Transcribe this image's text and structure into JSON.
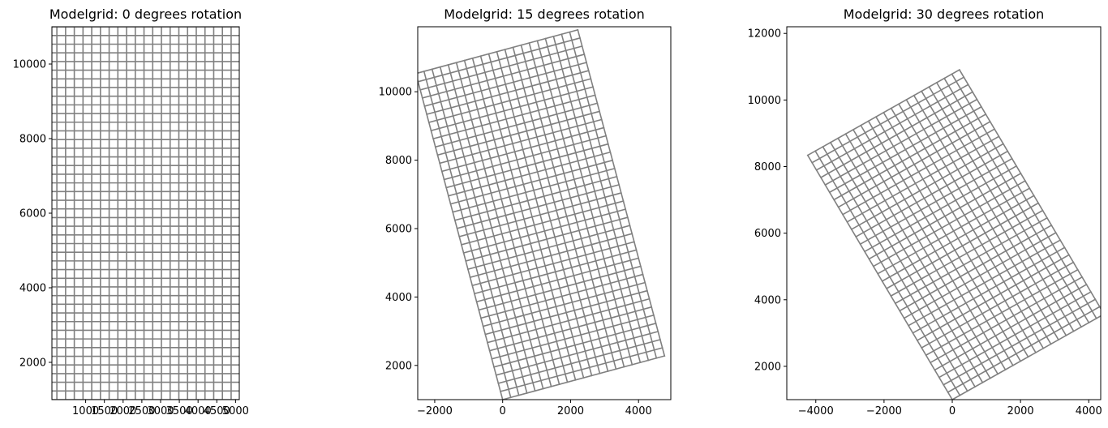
{
  "chart_data": [
    {
      "type": "grid",
      "title": "Modelgrid: 0 degrees rotation",
      "rotation_deg": 0,
      "origin": [
        0,
        1000
      ],
      "ncol": 22,
      "nrow": 43,
      "cell_size": 232.5,
      "xlim": [
        100,
        5100
      ],
      "ylim": [
        1000,
        11000
      ],
      "xticks": [
        1000,
        1500,
        2000,
        2500,
        3000,
        3500,
        4000,
        4500,
        5000
      ],
      "xtick_labels": [
        "1000",
        "1500",
        "2000",
        "2500",
        "3000",
        "3500",
        "4000",
        "4500",
        "5000"
      ],
      "yticks": [
        2000,
        4000,
        6000,
        8000,
        10000
      ],
      "ytick_labels": [
        "2000",
        "4000",
        "6000",
        "8000",
        "10000"
      ],
      "line_color": "#808080"
    },
    {
      "type": "grid",
      "title": "Modelgrid: 15 degrees rotation",
      "rotation_deg": 15,
      "origin": [
        0,
        1000
      ],
      "ncol": 20,
      "nrow": 40,
      "cell_size": 246.7,
      "xlim": [
        -2500,
        4950
      ],
      "ylim": [
        1000,
        11900
      ],
      "xticks": [
        -2000,
        0,
        2000,
        4000
      ],
      "xtick_labels": [
        "−2000",
        "0",
        "2000",
        "4000"
      ],
      "yticks": [
        2000,
        4000,
        6000,
        8000,
        10000
      ],
      "ytick_labels": [
        "2000",
        "4000",
        "6000",
        "8000",
        "10000"
      ],
      "line_color": "#808080"
    },
    {
      "type": "grid",
      "title": "Modelgrid: 30 degrees rotation",
      "rotation_deg": 30,
      "origin": [
        0,
        1000
      ],
      "ncol": 20,
      "nrow": 33,
      "cell_size": 256.8,
      "xlim": [
        -4850,
        4350
      ],
      "ylim": [
        1000,
        12200
      ],
      "xticks": [
        -4000,
        -2000,
        0,
        2000,
        4000
      ],
      "xtick_labels": [
        "−4000",
        "−2000",
        "0",
        "2000",
        "4000"
      ],
      "yticks": [
        2000,
        4000,
        6000,
        8000,
        10000,
        12000
      ],
      "ytick_labels": [
        "2000",
        "4000",
        "6000",
        "8000",
        "10000",
        "12000"
      ],
      "line_color": "#808080"
    }
  ]
}
